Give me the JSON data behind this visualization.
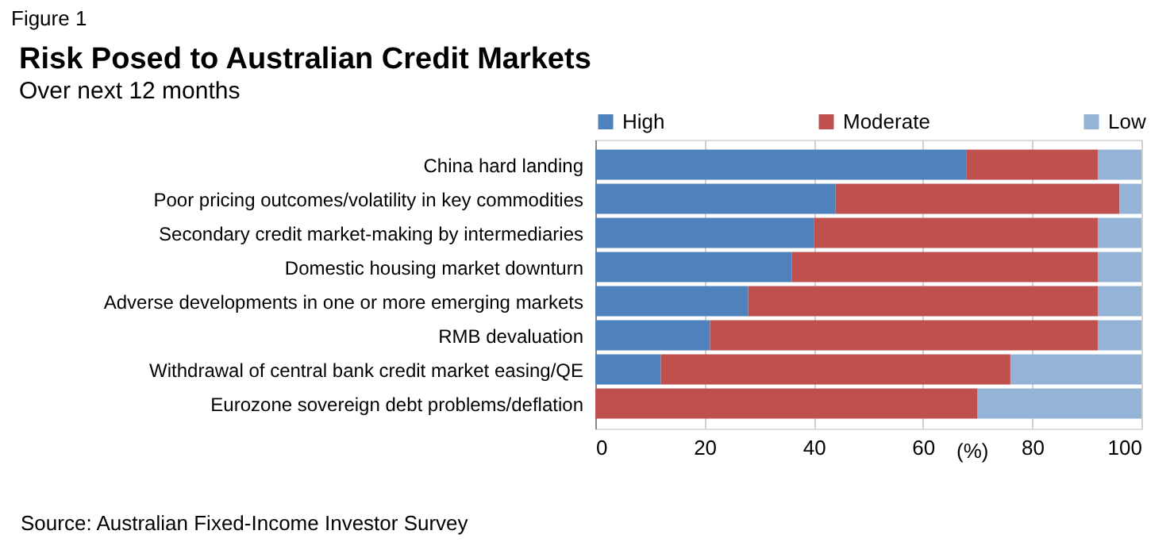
{
  "chart_data": {
    "type": "bar",
    "orientation": "horizontal",
    "stacked": true,
    "title": "Risk Posed to Australian Credit Markets",
    "subtitle": "Over next 12 months",
    "xlabel": "(%)",
    "categories": [
      "China hard landing",
      "Poor pricing outcomes/volatility in key commodities",
      "Secondary credit market-making by intermediaries",
      "Domestic housing market downturn",
      "Adverse developments in one or more emerging markets",
      "RMB devaluation",
      "Withdrawal of central bank credit market easing/QE",
      "Eurozone sovereign debt problems/deflation"
    ],
    "series": [
      {
        "name": "High",
        "color": "#4f81bd",
        "values": [
          68,
          44,
          40,
          36,
          28,
          21,
          12,
          0
        ]
      },
      {
        "name": "Moderate",
        "color": "#c0504d",
        "values": [
          24,
          52,
          52,
          56,
          64,
          71,
          64,
          70
        ]
      },
      {
        "name": "Low",
        "color": "#95b3d7",
        "values": [
          8,
          4,
          8,
          8,
          8,
          8,
          24,
          30
        ]
      }
    ],
    "xlim": [
      0,
      100
    ],
    "xticks": [
      0,
      20,
      40,
      60,
      80,
      100
    ],
    "grid": "x",
    "legend": "top",
    "annotations": [
      "Figure 1",
      "Source: Australian Fixed-Income Investor Survey"
    ]
  }
}
